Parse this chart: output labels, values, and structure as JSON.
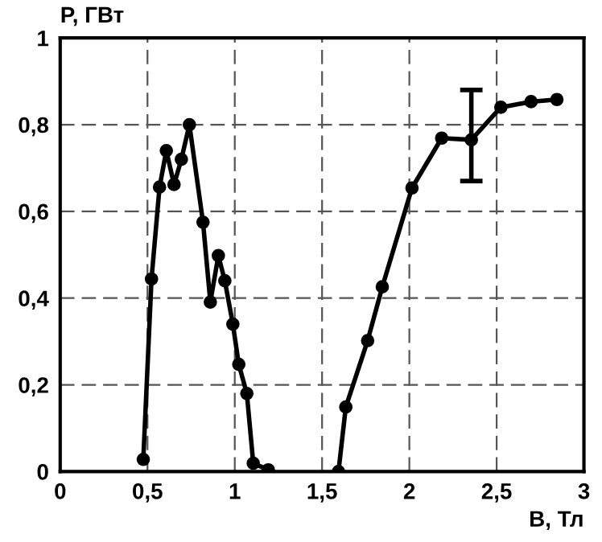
{
  "chart_data": {
    "type": "line",
    "xlabel": "B, Тл",
    "ylabel": "P, ГВт",
    "xlim": [
      0,
      3
    ],
    "ylim": [
      0,
      1
    ],
    "xticks": [
      0,
      {
        "value": 0.5,
        "label": "0,5"
      },
      1,
      {
        "value": 1.5,
        "label": "1,5"
      },
      2,
      {
        "value": 2.5,
        "label": "2,5"
      },
      3
    ],
    "yticks": [
      0,
      {
        "value": 0.2,
        "label": "0,2"
      },
      {
        "value": 0.4,
        "label": "0,4"
      },
      {
        "value": 0.6,
        "label": "0,6"
      },
      {
        "value": 0.8,
        "label": "0,8"
      },
      1
    ],
    "grid": true,
    "marker": "circle",
    "line_style": "solid",
    "series": [
      {
        "color": "#000000",
        "x": [
          0.476,
          0.523,
          0.569,
          0.608,
          0.652,
          0.694,
          0.74,
          0.818,
          0.86,
          0.906,
          0.943,
          0.989,
          1.023,
          1.069,
          1.106,
          1.192
        ],
        "values": [
          0.028,
          0.444,
          0.656,
          0.74,
          0.662,
          0.72,
          0.8,
          0.575,
          0.391,
          0.498,
          0.44,
          0.34,
          0.247,
          0.18,
          0.019,
          0.004
        ]
      },
      {
        "color": "#000000",
        "x": [
          1.594,
          1.636,
          1.761,
          1.845,
          2.015,
          2.185,
          2.355,
          2.524,
          2.697,
          2.845
        ],
        "values": [
          0,
          0.149,
          0.302,
          0.426,
          0.654,
          0.769,
          0.765,
          0.84,
          0.853,
          0.858
        ],
        "errors": [
          null,
          null,
          null,
          null,
          null,
          null,
          [
            0.67,
            0.88
          ],
          null,
          null,
          null
        ]
      }
    ]
  }
}
